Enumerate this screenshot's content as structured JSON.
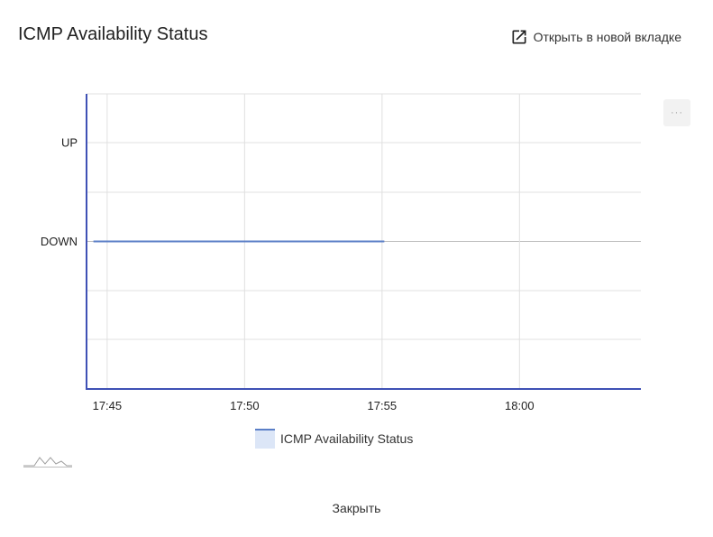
{
  "dialog": {
    "title": "ICMP Availability Status",
    "open_new_tab_label": "Открыть в новой вкладке",
    "close_label": "Закрыть",
    "menu_label": "···"
  },
  "colors": {
    "series_line": "#5b7fc7",
    "axis": "#3f51b5",
    "grid": "#e0e0e0",
    "legend_fill": "#dce6f7"
  },
  "chart_data": {
    "type": "line",
    "title": "",
    "xlabel": "",
    "ylabel": "",
    "x_ticks": [
      "17:45",
      "17:50",
      "17:55",
      "18:00"
    ],
    "y_ticks": [
      "UP",
      "DOWN"
    ],
    "xlim": [
      "17:44:15",
      "18:04:25"
    ],
    "grid": true,
    "legend_position": "bottom",
    "series": [
      {
        "name": "ICMP Availability Status",
        "x": [
          "17:44:30",
          "17:55:05"
        ],
        "y": [
          "DOWN",
          "DOWN"
        ]
      }
    ]
  }
}
